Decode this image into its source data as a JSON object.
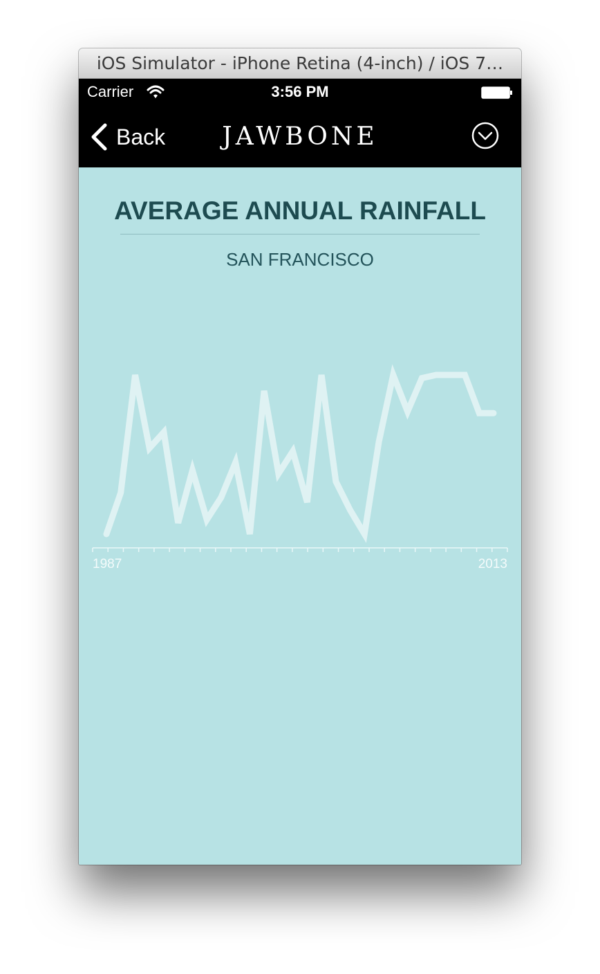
{
  "window": {
    "title": "iOS Simulator - iPhone Retina (4-inch) / iOS 7…"
  },
  "status_bar": {
    "carrier": "Carrier",
    "time": "3:56 PM"
  },
  "nav": {
    "back_label": "Back",
    "logo_text": "JAWBONE"
  },
  "colors": {
    "background": "#b7e2e4",
    "title": "#1d4b50",
    "line": "#dff2f3"
  },
  "chart_data": {
    "type": "line",
    "title": "AVERAGE ANNUAL RAINFALL",
    "subtitle": "SAN FRANCISCO",
    "x_tick_labels": [
      "1987",
      "2013"
    ],
    "x": [
      1986,
      1987,
      1988,
      1989,
      1990,
      1991,
      1992,
      1993,
      1994,
      1995,
      1996,
      1997,
      1998,
      1999,
      2000,
      2001,
      2002,
      2003,
      2004,
      2005,
      2006,
      2007,
      2008,
      2009,
      2010,
      2011,
      2012,
      2013
    ],
    "values": [
      0.0,
      0.26,
      1.0,
      0.54,
      0.64,
      0.07,
      0.4,
      0.09,
      0.23,
      0.45,
      0.0,
      0.9,
      0.38,
      0.52,
      0.2,
      1.0,
      0.33,
      0.15,
      0.0,
      0.58,
      1.0,
      0.77,
      0.98,
      1.0,
      1.0,
      1.0,
      0.76,
      0.76
    ],
    "ylim": [
      0,
      1
    ],
    "grid": false
  }
}
